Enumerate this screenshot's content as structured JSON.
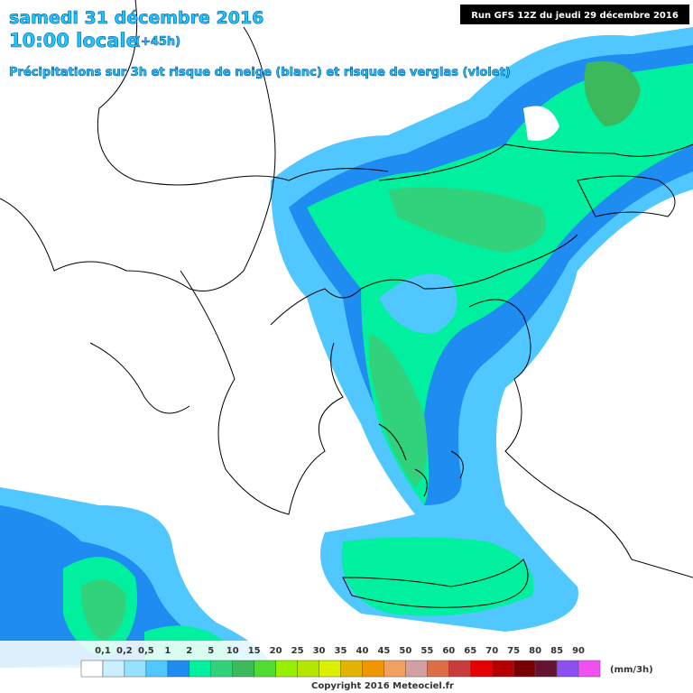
{
  "header": {
    "date": "samedi 31 décembre 2016",
    "time": "10:00 locale",
    "lead": "(+45h)",
    "subtitle": "Précipitations sur 3h et risque de neige (blanc) et risque de verglas (violet)",
    "run": "Run GFS 12Z du jeudi 29 décembre 2016"
  },
  "legend": {
    "labels": [
      "0,1",
      "0,2",
      "0,5",
      "1",
      "2",
      "5",
      "10",
      "15",
      "20",
      "25",
      "30",
      "35",
      "40",
      "45",
      "50",
      "55",
      "60",
      "65",
      "70",
      "75",
      "80",
      "85",
      "90"
    ],
    "colors": [
      "#ffffff",
      "#c8f0ff",
      "#96e1ff",
      "#50c8ff",
      "#1e8cf0",
      "#00f0a0",
      "#32d27d",
      "#3cb95a",
      "#50dc32",
      "#96f000",
      "#b4e600",
      "#dcf000",
      "#e1b400",
      "#f09600",
      "#f0a060",
      "#d2a0a0",
      "#dc6e46",
      "#c83c3c",
      "#e60000",
      "#b40000",
      "#780000",
      "#641432",
      "#8c50f0",
      "#f050f0"
    ],
    "units": "(mm/3h)"
  },
  "footer": {
    "copyright": "Copyright 2016 Meteociel.fr"
  }
}
